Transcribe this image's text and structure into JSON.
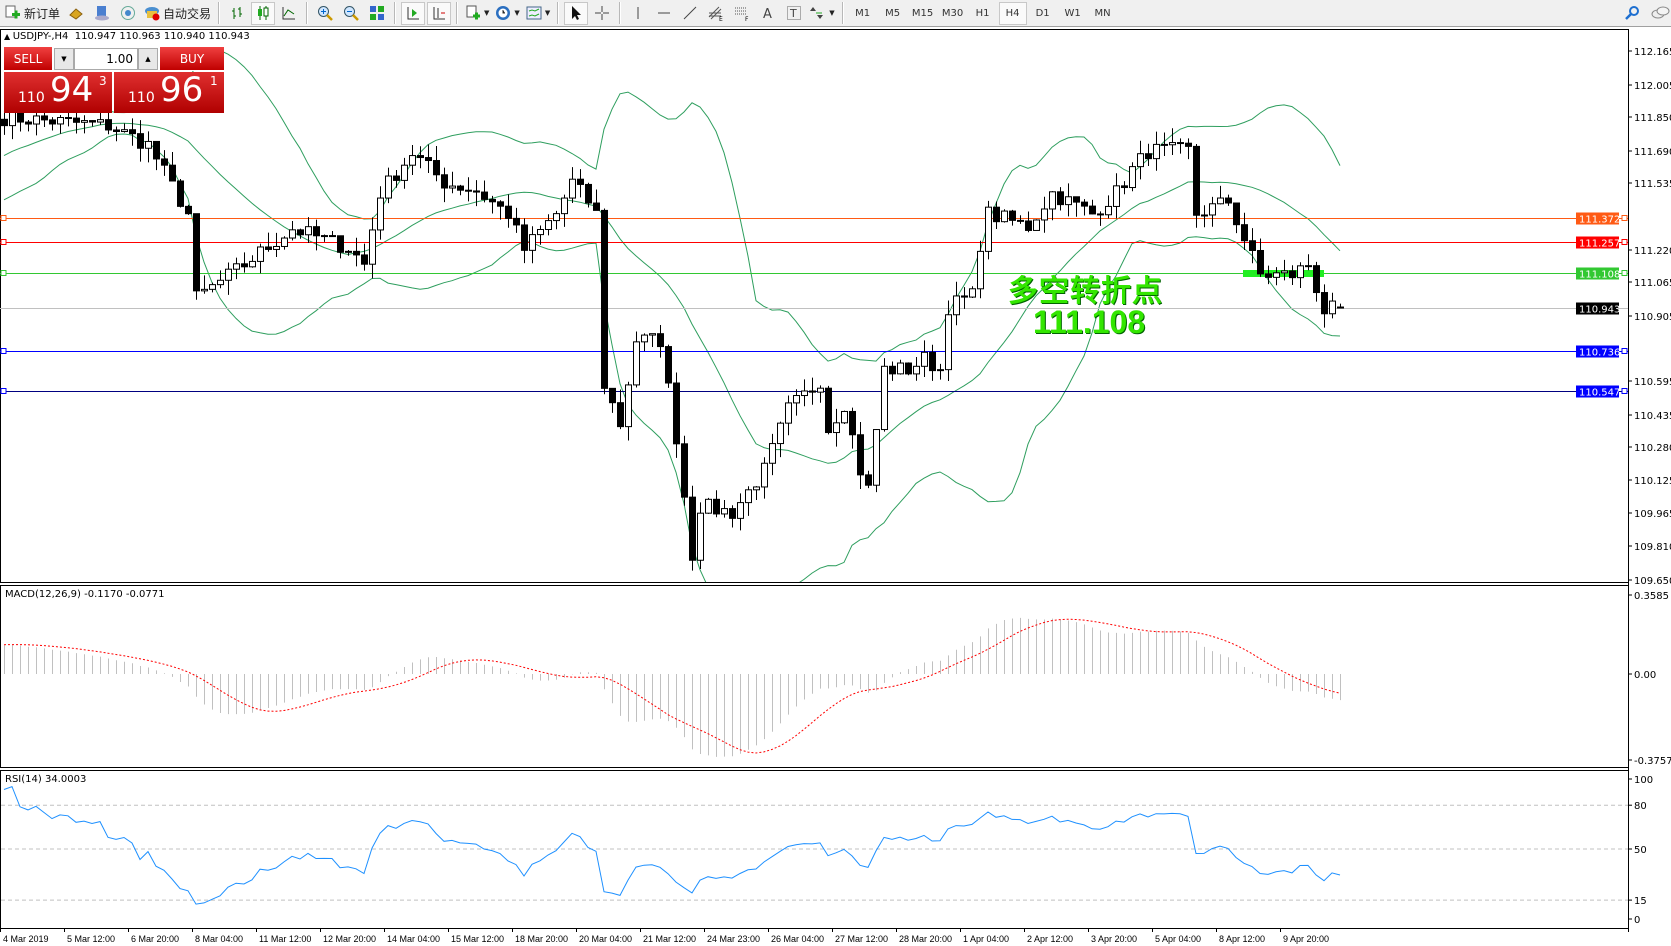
{
  "toolbar": {
    "new_order": "新订单",
    "auto_trading": "自动交易",
    "icons": [
      "new-order-icon",
      "gold-bars-icon",
      "market-watch-icon",
      "signals-icon",
      "auto-trading-icon",
      "bar-chart-icon",
      "candlestick-icon",
      "line-chart-icon",
      "zoom-in-icon",
      "zoom-out-icon",
      "tile-windows-icon",
      "autoscroll-icon",
      "chart-shift-icon",
      "new-chart-icon",
      "clock-icon",
      "template-icon",
      "cursor-icon",
      "crosshair-icon",
      "vertical-line-icon",
      "horizontal-line-icon",
      "trendline-icon",
      "fibo-channel-icon",
      "fibo-icon",
      "text-icon",
      "text-label-icon",
      "arrows-icon",
      "search-icon",
      "chat-icon"
    ],
    "timeframes": [
      "M1",
      "M5",
      "M15",
      "M30",
      "H1",
      "H4",
      "D1",
      "W1",
      "MN"
    ],
    "active_timeframe": "H4"
  },
  "chart_header": {
    "symbol": "USDJPY-,H4",
    "ohlc": "110.947 110.963 110.940 110.943"
  },
  "trade_panel": {
    "sell_label": "SELL",
    "buy_label": "BUY",
    "lot": "1.00",
    "sell_big": "110",
    "sell_pips": "94",
    "sell_frac": "3",
    "buy_big": "110",
    "buy_pips": "96",
    "buy_frac": "1"
  },
  "annotation": {
    "title": "多空转折点",
    "price": "111.108",
    "color": "#33e600"
  },
  "chart_data": {
    "type": "candlestick",
    "price_ticks": [
      "112.165",
      "112.005",
      "111.850",
      "111.690",
      "111.535",
      "111.220",
      "111.065",
      "110.905",
      "110.595",
      "110.435",
      "110.280",
      "110.125",
      "109.965",
      "109.810",
      "109.650"
    ],
    "price_range": [
      109.65,
      112.165
    ],
    "hlines": [
      {
        "price": "111.372",
        "color": "#ff5a14"
      },
      {
        "price": "111.257",
        "color": "#ff0000"
      },
      {
        "price": "111.108",
        "color": "#32c832"
      },
      {
        "price": "110.943",
        "color": "#000000",
        "line": "#c0c0c0"
      },
      {
        "price": "110.736",
        "color": "#0000ff"
      },
      {
        "price": "110.547",
        "color": "#0000ff",
        "line": "#000080"
      }
    ],
    "close_keypoints": [
      [
        0,
        111.85
      ],
      [
        13,
        111.81
      ],
      [
        18,
        111.72
      ],
      [
        23,
        111.39
      ],
      [
        24,
        110.99
      ],
      [
        29,
        111.12
      ],
      [
        36,
        111.32
      ],
      [
        43,
        111.23
      ],
      [
        45,
        111.15
      ],
      [
        47,
        111.49
      ],
      [
        51,
        111.68
      ],
      [
        55,
        111.54
      ],
      [
        59,
        111.5
      ],
      [
        63,
        111.39
      ],
      [
        65,
        111.22
      ],
      [
        69,
        111.39
      ],
      [
        71,
        111.54
      ],
      [
        73,
        111.45
      ],
      [
        74,
        111.39
      ],
      [
        75,
        110.58
      ],
      [
        77,
        110.39
      ],
      [
        79,
        110.79
      ],
      [
        82,
        110.79
      ],
      [
        84,
        110.33
      ],
      [
        86,
        109.77
      ],
      [
        87,
        110.0
      ],
      [
        91,
        109.97
      ],
      [
        95,
        110.17
      ],
      [
        98,
        110.46
      ],
      [
        101,
        110.56
      ],
      [
        102,
        110.6
      ],
      [
        103,
        110.37
      ],
      [
        105,
        110.49
      ],
      [
        107,
        110.17
      ],
      [
        108,
        110.08
      ],
      [
        110,
        110.65
      ],
      [
        113,
        110.65
      ],
      [
        115,
        110.7
      ],
      [
        117,
        110.65
      ],
      [
        118,
        110.95
      ],
      [
        121,
        111.0
      ],
      [
        122,
        111.25
      ],
      [
        123,
        111.39
      ],
      [
        128,
        111.33
      ],
      [
        131,
        111.49
      ],
      [
        136,
        111.39
      ],
      [
        139,
        111.49
      ],
      [
        141,
        111.6
      ],
      [
        143,
        111.69
      ],
      [
        148,
        111.69
      ],
      [
        149,
        111.39
      ],
      [
        153,
        111.45
      ],
      [
        155,
        111.27
      ],
      [
        157,
        111.1
      ],
      [
        161,
        111.1
      ],
      [
        163,
        111.15
      ],
      [
        165,
        110.93
      ],
      [
        167,
        110.943
      ]
    ],
    "last_candle": {
      "open": 110.947,
      "high": 110.963,
      "low": 110.94,
      "close": 110.943
    },
    "bollinger": {
      "period": 20,
      "deviation": 2,
      "color": "#2e9e5e"
    },
    "macd": {
      "label": "MACD(12,26,9) -0.1170 -0.0771",
      "ticks": [
        "0.3585",
        "0.00",
        "-0.3757"
      ],
      "range": [
        -0.3757,
        0.3585
      ],
      "histogram_color": "#c0c0c0",
      "signal_color": "#ff0000"
    },
    "rsi": {
      "label": "RSI(14) 34.0003",
      "ticks": [
        "100",
        "80",
        "50",
        "15",
        "0"
      ],
      "levels": [
        80,
        50,
        15
      ],
      "color": "#1e90ff"
    },
    "time_labels": [
      "4 Mar 2019",
      "5 Mar 12:00",
      "6 Mar 20:00",
      "8 Mar 04:00",
      "11 Mar 12:00",
      "12 Mar 20:00",
      "14 Mar 04:00",
      "15 Mar 12:00",
      "18 Mar 20:00",
      "20 Mar 04:00",
      "21 Mar 12:00",
      "24 Mar 23:00",
      "26 Mar 04:00",
      "27 Mar 12:00",
      "28 Mar 20:00",
      "1 Apr 04:00",
      "2 Apr 12:00",
      "3 Apr 20:00",
      "5 Apr 04:00",
      "8 Apr 12:00",
      "9 Apr 20:00"
    ]
  }
}
